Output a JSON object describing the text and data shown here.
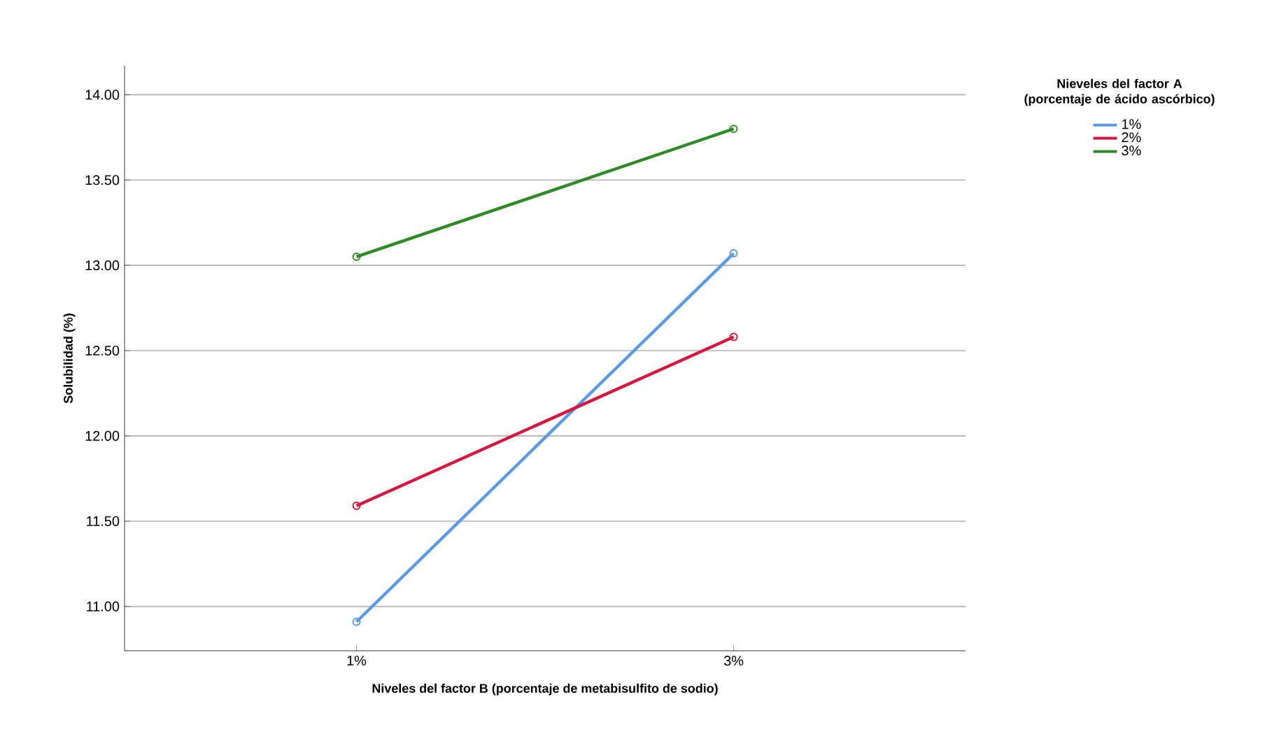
{
  "chart_data": {
    "type": "line",
    "xlabel": "Niveles del factor B (porcentaje de metabisulfito de sodio)",
    "ylabel": "Solubilidad (%)",
    "legend_title": "Nieveles del factor A (porcentaje de ácido ascórbico)",
    "categories": [
      "1%",
      "3%"
    ],
    "series": [
      {
        "name": "1%",
        "color": "#5b9be6",
        "values": [
          10.91,
          13.07
        ]
      },
      {
        "name": "2%",
        "color": "#d6173f",
        "values": [
          11.59,
          12.58
        ]
      },
      {
        "name": "3%",
        "color": "#2e8b26",
        "values": [
          13.05,
          13.8
        ]
      }
    ],
    "ylim": [
      10.74,
      14.17
    ],
    "yticks": [
      {
        "value": 11,
        "label": "11.00"
      },
      {
        "value": 11.5,
        "label": "11.50"
      },
      {
        "value": 12,
        "label": "12.00"
      },
      {
        "value": 12.5,
        "label": "12.50"
      },
      {
        "value": 13,
        "label": "13.00"
      },
      {
        "value": 13.5,
        "label": "13.50"
      },
      {
        "value": 14,
        "label": "14.00"
      }
    ],
    "grid": "y",
    "legend": "right",
    "marker": "circle",
    "line_style": "solid"
  }
}
